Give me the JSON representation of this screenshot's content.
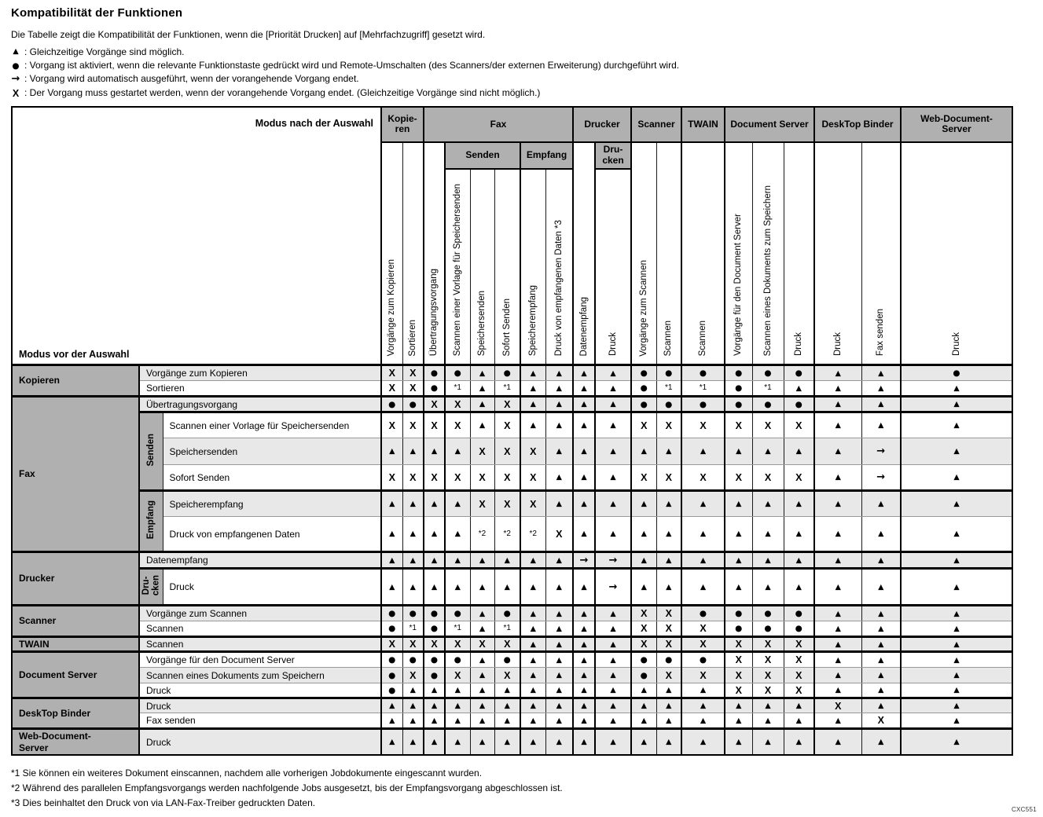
{
  "page": {
    "title": "Kompatibilität der Funktionen",
    "intro": "Die Tabelle zeigt die Kompatibilität der Funktionen, wenn die [Priorität Drucken] auf [Mehrfachzugriff] gesetzt wird.",
    "figure_code": "CXC551"
  },
  "legend": [
    {
      "symbol": "▲",
      "text": ": Gleichzeitige Vorgänge sind möglich."
    },
    {
      "symbol": "●",
      "text": ": Vorgang ist aktiviert, wenn die relevante Funktionstaste gedrückt wird und Remote-Umschalten (des Scanners/der externen Erweiterung) durchgeführt wird."
    },
    {
      "symbol": "→",
      "text": ": Vorgang wird automatisch ausgeführt, wenn der vorangehende Vorgang endet."
    },
    {
      "symbol": "X",
      "text": ": Der Vorgang muss gestartet werden, wenn der vorangehende Vorgang endet. (Gleichzeitige Vorgänge sind nicht möglich.)"
    }
  ],
  "table": {
    "corner": {
      "top": "Modus nach der Auswahl",
      "bottom": "Modus vor der Auswahl"
    },
    "columns": {
      "groups": [
        {
          "label": "Kopie-\nren",
          "span": 2
        },
        {
          "label": "Fax",
          "span": 6
        },
        {
          "label": "Drucker",
          "span": 2
        },
        {
          "label": "Scanner",
          "span": 2
        },
        {
          "label": "TWAIN",
          "span": 1
        },
        {
          "label": "Document Server",
          "span": 3
        },
        {
          "label": "DeskTop Binder",
          "span": 2
        },
        {
          "label": "Web-Document-\nServer",
          "span": 1
        }
      ],
      "mid": [
        {
          "orient": "v",
          "col": 1,
          "label": "Vorgänge zum Kopieren"
        },
        {
          "orient": "v",
          "col": 2,
          "label": "Sortieren"
        },
        {
          "orient": "v",
          "col": 3,
          "label": "Übertragungsvorgang"
        },
        {
          "orient": "h",
          "col": 4,
          "span": 3,
          "label": "Senden"
        },
        {
          "orient": "h",
          "col": 7,
          "span": 2,
          "label": "Empfang"
        },
        {
          "orient": "v",
          "col": 9,
          "label": "Datenempfang"
        },
        {
          "orient": "h",
          "col": 10,
          "span": 1,
          "label": "Dru-\ncken"
        },
        {
          "orient": "v",
          "col": 11,
          "label": "Vorgänge zum Scannen"
        },
        {
          "orient": "v",
          "col": 12,
          "label": "Scannen"
        },
        {
          "orient": "v",
          "col": 13,
          "label": "Scannen"
        },
        {
          "orient": "v",
          "col": 14,
          "label": "Vorgänge für den Document Server"
        },
        {
          "orient": "v",
          "col": 15,
          "label": "Scannen eines Dokuments zum Speichern"
        },
        {
          "orient": "v",
          "col": 16,
          "label": "Druck"
        },
        {
          "orient": "v",
          "col": 17,
          "label": "Druck"
        },
        {
          "orient": "v",
          "col": 18,
          "label": "Fax senden"
        },
        {
          "orient": "v",
          "col": 19,
          "label": "Druck"
        }
      ],
      "leaf": [
        {
          "col": 4,
          "label": "Scannen einer Vorlage für Speichersenden"
        },
        {
          "col": 5,
          "label": "Speichersenden"
        },
        {
          "col": 6,
          "label": "Sofort Senden"
        },
        {
          "col": 7,
          "label": "Speicherempfang"
        },
        {
          "col": 8,
          "label": "Druck von empfangenen Daten *3"
        },
        {
          "col": 10,
          "label": "Druck"
        }
      ]
    },
    "rows": [
      {
        "group": "Kopieren",
        "group_rowspan": 2,
        "label": "Vorgänge zum Kopieren",
        "label_span": 2,
        "cells": [
          "X",
          "X",
          "●",
          "●",
          "▲",
          "●",
          "▲",
          "▲",
          "▲",
          "▲",
          "●",
          "●",
          "●",
          "●",
          "●",
          "●",
          "▲",
          "▲",
          "●"
        ]
      },
      {
        "label": "Sortieren",
        "label_span": 2,
        "cells": [
          "X",
          "X",
          "●",
          "*1",
          "▲",
          "*1",
          "▲",
          "▲",
          "▲",
          "▲",
          "●",
          "*1",
          "*1",
          "●",
          "*1",
          "▲",
          "▲",
          "▲",
          "▲"
        ]
      },
      {
        "group": "Fax",
        "group_rowspan": 6,
        "label": "Übertragungsvorgang",
        "label_span": 2,
        "cells": [
          "●",
          "●",
          "X",
          "X",
          "▲",
          "X",
          "▲",
          "▲",
          "▲",
          "▲",
          "●",
          "●",
          "●",
          "●",
          "●",
          "●",
          "▲",
          "▲",
          "▲"
        ]
      },
      {
        "sub": "Senden",
        "sub_rowspan": 3,
        "label": "Scannen einer Vorlage für Speichersenden",
        "label_span": 1,
        "cells": [
          "X",
          "X",
          "X",
          "X",
          "▲",
          "X",
          "▲",
          "▲",
          "▲",
          "▲",
          "X",
          "X",
          "X",
          "X",
          "X",
          "X",
          "▲",
          "▲",
          "▲"
        ]
      },
      {
        "label": "Speichersenden",
        "label_span": 1,
        "cells": [
          "▲",
          "▲",
          "▲",
          "▲",
          "X",
          "X",
          "X",
          "▲",
          "▲",
          "▲",
          "▲",
          "▲",
          "▲",
          "▲",
          "▲",
          "▲",
          "▲",
          "→",
          "▲"
        ]
      },
      {
        "label": "Sofort Senden",
        "label_span": 1,
        "cells": [
          "X",
          "X",
          "X",
          "X",
          "X",
          "X",
          "X",
          "▲",
          "▲",
          "▲",
          "X",
          "X",
          "X",
          "X",
          "X",
          "X",
          "▲",
          "→",
          "▲"
        ]
      },
      {
        "sub": "Empfang",
        "sub_rowspan": 2,
        "label": "Speicherempfang",
        "label_span": 1,
        "cells": [
          "▲",
          "▲",
          "▲",
          "▲",
          "X",
          "X",
          "X",
          "▲",
          "▲",
          "▲",
          "▲",
          "▲",
          "▲",
          "▲",
          "▲",
          "▲",
          "▲",
          "▲",
          "▲"
        ]
      },
      {
        "label": "Druck von empfangenen Daten",
        "label_span": 1,
        "cells": [
          "▲",
          "▲",
          "▲",
          "▲",
          "*2",
          "*2",
          "*2",
          "X",
          "▲",
          "▲",
          "▲",
          "▲",
          "▲",
          "▲",
          "▲",
          "▲",
          "▲",
          "▲",
          "▲"
        ]
      },
      {
        "group": "Drucker",
        "group_rowspan": 2,
        "label": "Datenempfang",
        "label_span": 2,
        "cells": [
          "▲",
          "▲",
          "▲",
          "▲",
          "▲",
          "▲",
          "▲",
          "▲",
          "→",
          "→",
          "▲",
          "▲",
          "▲",
          "▲",
          "▲",
          "▲",
          "▲",
          "▲",
          "▲"
        ]
      },
      {
        "sub": "Dru-\ncken",
        "sub_rowspan": 1,
        "label": "Druck",
        "label_span": 1,
        "cells": [
          "▲",
          "▲",
          "▲",
          "▲",
          "▲",
          "▲",
          "▲",
          "▲",
          "▲",
          "→",
          "▲",
          "▲",
          "▲",
          "▲",
          "▲",
          "▲",
          "▲",
          "▲",
          "▲"
        ]
      },
      {
        "group": "Scanner",
        "group_rowspan": 2,
        "label": "Vorgänge zum Scannen",
        "label_span": 2,
        "cells": [
          "●",
          "●",
          "●",
          "●",
          "▲",
          "●",
          "▲",
          "▲",
          "▲",
          "▲",
          "X",
          "X",
          "●",
          "●",
          "●",
          "●",
          "▲",
          "▲",
          "▲"
        ]
      },
      {
        "label": "Scannen",
        "label_span": 2,
        "cells": [
          "●",
          "*1",
          "●",
          "*1",
          "▲",
          "*1",
          "▲",
          "▲",
          "▲",
          "▲",
          "X",
          "X",
          "X",
          "●",
          "●",
          "●",
          "▲",
          "▲",
          "▲"
        ]
      },
      {
        "group": "TWAIN",
        "group_rowspan": 1,
        "label": "Scannen",
        "label_span": 2,
        "cells": [
          "X",
          "X",
          "X",
          "X",
          "X",
          "X",
          "▲",
          "▲",
          "▲",
          "▲",
          "X",
          "X",
          "X",
          "X",
          "X",
          "X",
          "▲",
          "▲",
          "▲"
        ]
      },
      {
        "group": "Document Server",
        "group_rowspan": 3,
        "label": "Vorgänge für den Document Server",
        "label_span": 2,
        "cells": [
          "●",
          "●",
          "●",
          "●",
          "▲",
          "●",
          "▲",
          "▲",
          "▲",
          "▲",
          "●",
          "●",
          "●",
          "X",
          "X",
          "X",
          "▲",
          "▲",
          "▲"
        ]
      },
      {
        "label": "Scannen eines Dokuments zum Speichern",
        "label_span": 2,
        "cells": [
          "●",
          "X",
          "●",
          "X",
          "▲",
          "X",
          "▲",
          "▲",
          "▲",
          "▲",
          "●",
          "X",
          "X",
          "X",
          "X",
          "X",
          "▲",
          "▲",
          "▲"
        ]
      },
      {
        "label": "Druck",
        "label_span": 2,
        "cells": [
          "●",
          "▲",
          "▲",
          "▲",
          "▲",
          "▲",
          "▲",
          "▲",
          "▲",
          "▲",
          "▲",
          "▲",
          "▲",
          "X",
          "X",
          "X",
          "▲",
          "▲",
          "▲"
        ]
      },
      {
        "group": "DeskTop Binder",
        "group_rowspan": 2,
        "label": "Druck",
        "label_span": 2,
        "cells": [
          "▲",
          "▲",
          "▲",
          "▲",
          "▲",
          "▲",
          "▲",
          "▲",
          "▲",
          "▲",
          "▲",
          "▲",
          "▲",
          "▲",
          "▲",
          "▲",
          "X",
          "▲",
          "▲"
        ]
      },
      {
        "label": "Fax senden",
        "label_span": 2,
        "cells": [
          "▲",
          "▲",
          "▲",
          "▲",
          "▲",
          "▲",
          "▲",
          "▲",
          "▲",
          "▲",
          "▲",
          "▲",
          "▲",
          "▲",
          "▲",
          "▲",
          "▲",
          "X",
          "▲"
        ]
      },
      {
        "group": "Web-Document-\nServer",
        "group_rowspan": 1,
        "label": "Druck",
        "label_span": 2,
        "cells": [
          "▲",
          "▲",
          "▲",
          "▲",
          "▲",
          "▲",
          "▲",
          "▲",
          "▲",
          "▲",
          "▲",
          "▲",
          "▲",
          "▲",
          "▲",
          "▲",
          "▲",
          "▲",
          "▲"
        ]
      }
    ]
  },
  "footnotes": [
    "*1 Sie können ein weiteres Dokument einscannen, nachdem alle vorherigen Jobdokumente eingescannt wurden.",
    "*2 Während des parallelen Empfangsvorgangs werden nachfolgende Jobs ausgesetzt, bis der Empfangsvorgang abgeschlossen ist.",
    "*3 Dies beinhaltet den Druck von via LAN-Fax-Treiber gedruckten Daten."
  ]
}
